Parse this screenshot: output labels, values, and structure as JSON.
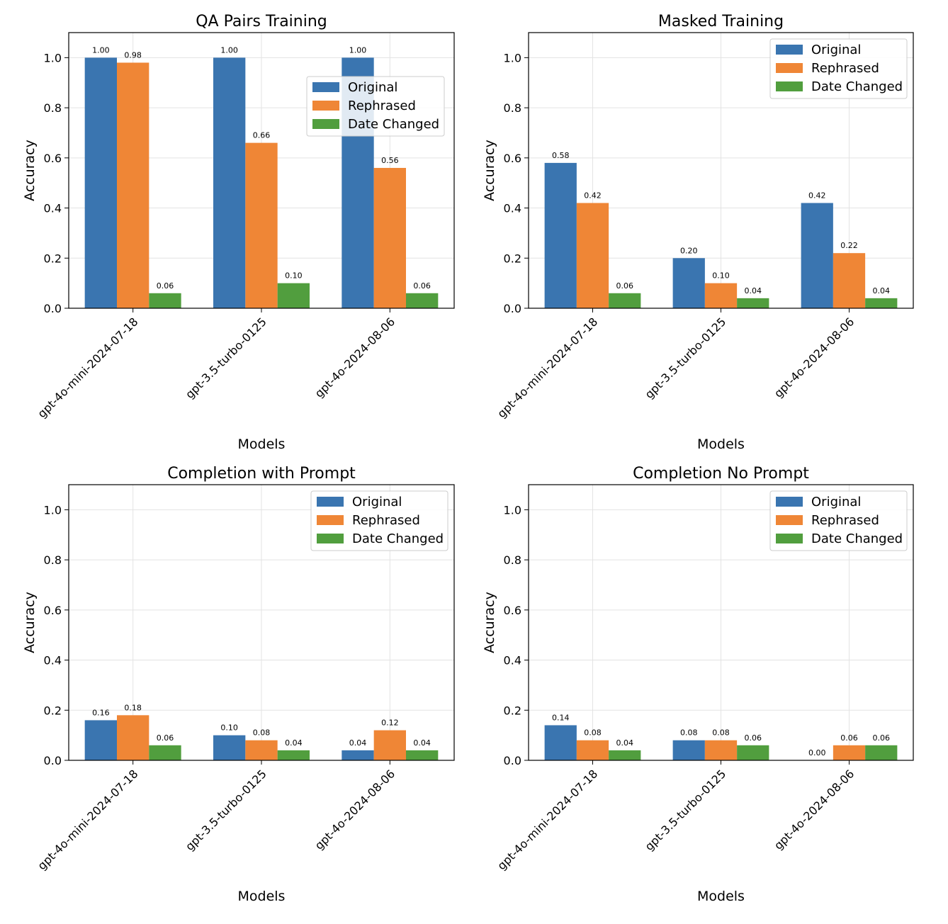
{
  "figure": {
    "colors": {
      "Original": "#3a75b0",
      "Rephrased": "#ef8636",
      "Date Changed": "#519e3e"
    }
  },
  "chart_data": [
    {
      "type": "bar",
      "title": "QA Pairs Training",
      "xlabel": "Models",
      "ylabel": "Accuracy",
      "ylim": [
        0,
        1.1
      ],
      "yticks": [
        "0.0",
        "0.2",
        "0.4",
        "0.6",
        "0.8",
        "1.0"
      ],
      "grid": true,
      "legend_position": "center-right",
      "categories": [
        "gpt-4o-mini-2024-07-18",
        "gpt-3.5-turbo-0125",
        "gpt-4o-2024-08-06"
      ],
      "series": [
        {
          "name": "Original",
          "values": [
            1.0,
            1.0,
            1.0
          ],
          "labels": [
            "1.00",
            "1.00",
            "1.00"
          ]
        },
        {
          "name": "Rephrased",
          "values": [
            0.98,
            0.66,
            0.56
          ],
          "labels": [
            "0.98",
            "0.66",
            "0.56"
          ]
        },
        {
          "name": "Date Changed",
          "values": [
            0.06,
            0.1,
            0.06
          ],
          "labels": [
            "0.06",
            "0.10",
            "0.06"
          ]
        }
      ]
    },
    {
      "type": "bar",
      "title": "Masked Training",
      "xlabel": "Models",
      "ylabel": "Accuracy",
      "ylim": [
        0,
        1.1
      ],
      "yticks": [
        "0.0",
        "0.2",
        "0.4",
        "0.6",
        "0.8",
        "1.0"
      ],
      "grid": true,
      "legend_position": "top-right",
      "categories": [
        "gpt-4o-mini-2024-07-18",
        "gpt-3.5-turbo-0125",
        "gpt-4o-2024-08-06"
      ],
      "series": [
        {
          "name": "Original",
          "values": [
            0.58,
            0.2,
            0.42
          ],
          "labels": [
            "0.58",
            "0.20",
            "0.42"
          ]
        },
        {
          "name": "Rephrased",
          "values": [
            0.42,
            0.1,
            0.22
          ],
          "labels": [
            "0.42",
            "0.10",
            "0.22"
          ]
        },
        {
          "name": "Date Changed",
          "values": [
            0.06,
            0.04,
            0.04
          ],
          "labels": [
            "0.06",
            "0.04",
            "0.04"
          ]
        }
      ]
    },
    {
      "type": "bar",
      "title": "Completion with Prompt",
      "xlabel": "Models",
      "ylabel": "Accuracy",
      "ylim": [
        0,
        1.1
      ],
      "yticks": [
        "0.0",
        "0.2",
        "0.4",
        "0.6",
        "0.8",
        "1.0"
      ],
      "grid": true,
      "legend_position": "top-right",
      "categories": [
        "gpt-4o-mini-2024-07-18",
        "gpt-3.5-turbo-0125",
        "gpt-4o-2024-08-06"
      ],
      "series": [
        {
          "name": "Original",
          "values": [
            0.16,
            0.1,
            0.04
          ],
          "labels": [
            "0.16",
            "0.10",
            "0.04"
          ]
        },
        {
          "name": "Rephrased",
          "values": [
            0.18,
            0.08,
            0.12
          ],
          "labels": [
            "0.18",
            "0.08",
            "0.12"
          ]
        },
        {
          "name": "Date Changed",
          "values": [
            0.06,
            0.04,
            0.04
          ],
          "labels": [
            "0.06",
            "0.04",
            "0.04"
          ]
        }
      ]
    },
    {
      "type": "bar",
      "title": "Completion No Prompt",
      "xlabel": "Models",
      "ylabel": "Accuracy",
      "ylim": [
        0,
        1.1
      ],
      "yticks": [
        "0.0",
        "0.2",
        "0.4",
        "0.6",
        "0.8",
        "1.0"
      ],
      "grid": true,
      "legend_position": "top-right",
      "categories": [
        "gpt-4o-mini-2024-07-18",
        "gpt-3.5-turbo-0125",
        "gpt-4o-2024-08-06"
      ],
      "series": [
        {
          "name": "Original",
          "values": [
            0.14,
            0.08,
            0.0
          ],
          "labels": [
            "0.14",
            "0.08",
            "0.00"
          ]
        },
        {
          "name": "Rephrased",
          "values": [
            0.08,
            0.08,
            0.06
          ],
          "labels": [
            "0.08",
            "0.08",
            "0.06"
          ]
        },
        {
          "name": "Date Changed",
          "values": [
            0.04,
            0.06,
            0.06
          ],
          "labels": [
            "0.04",
            "0.06",
            "0.06"
          ]
        }
      ]
    }
  ]
}
